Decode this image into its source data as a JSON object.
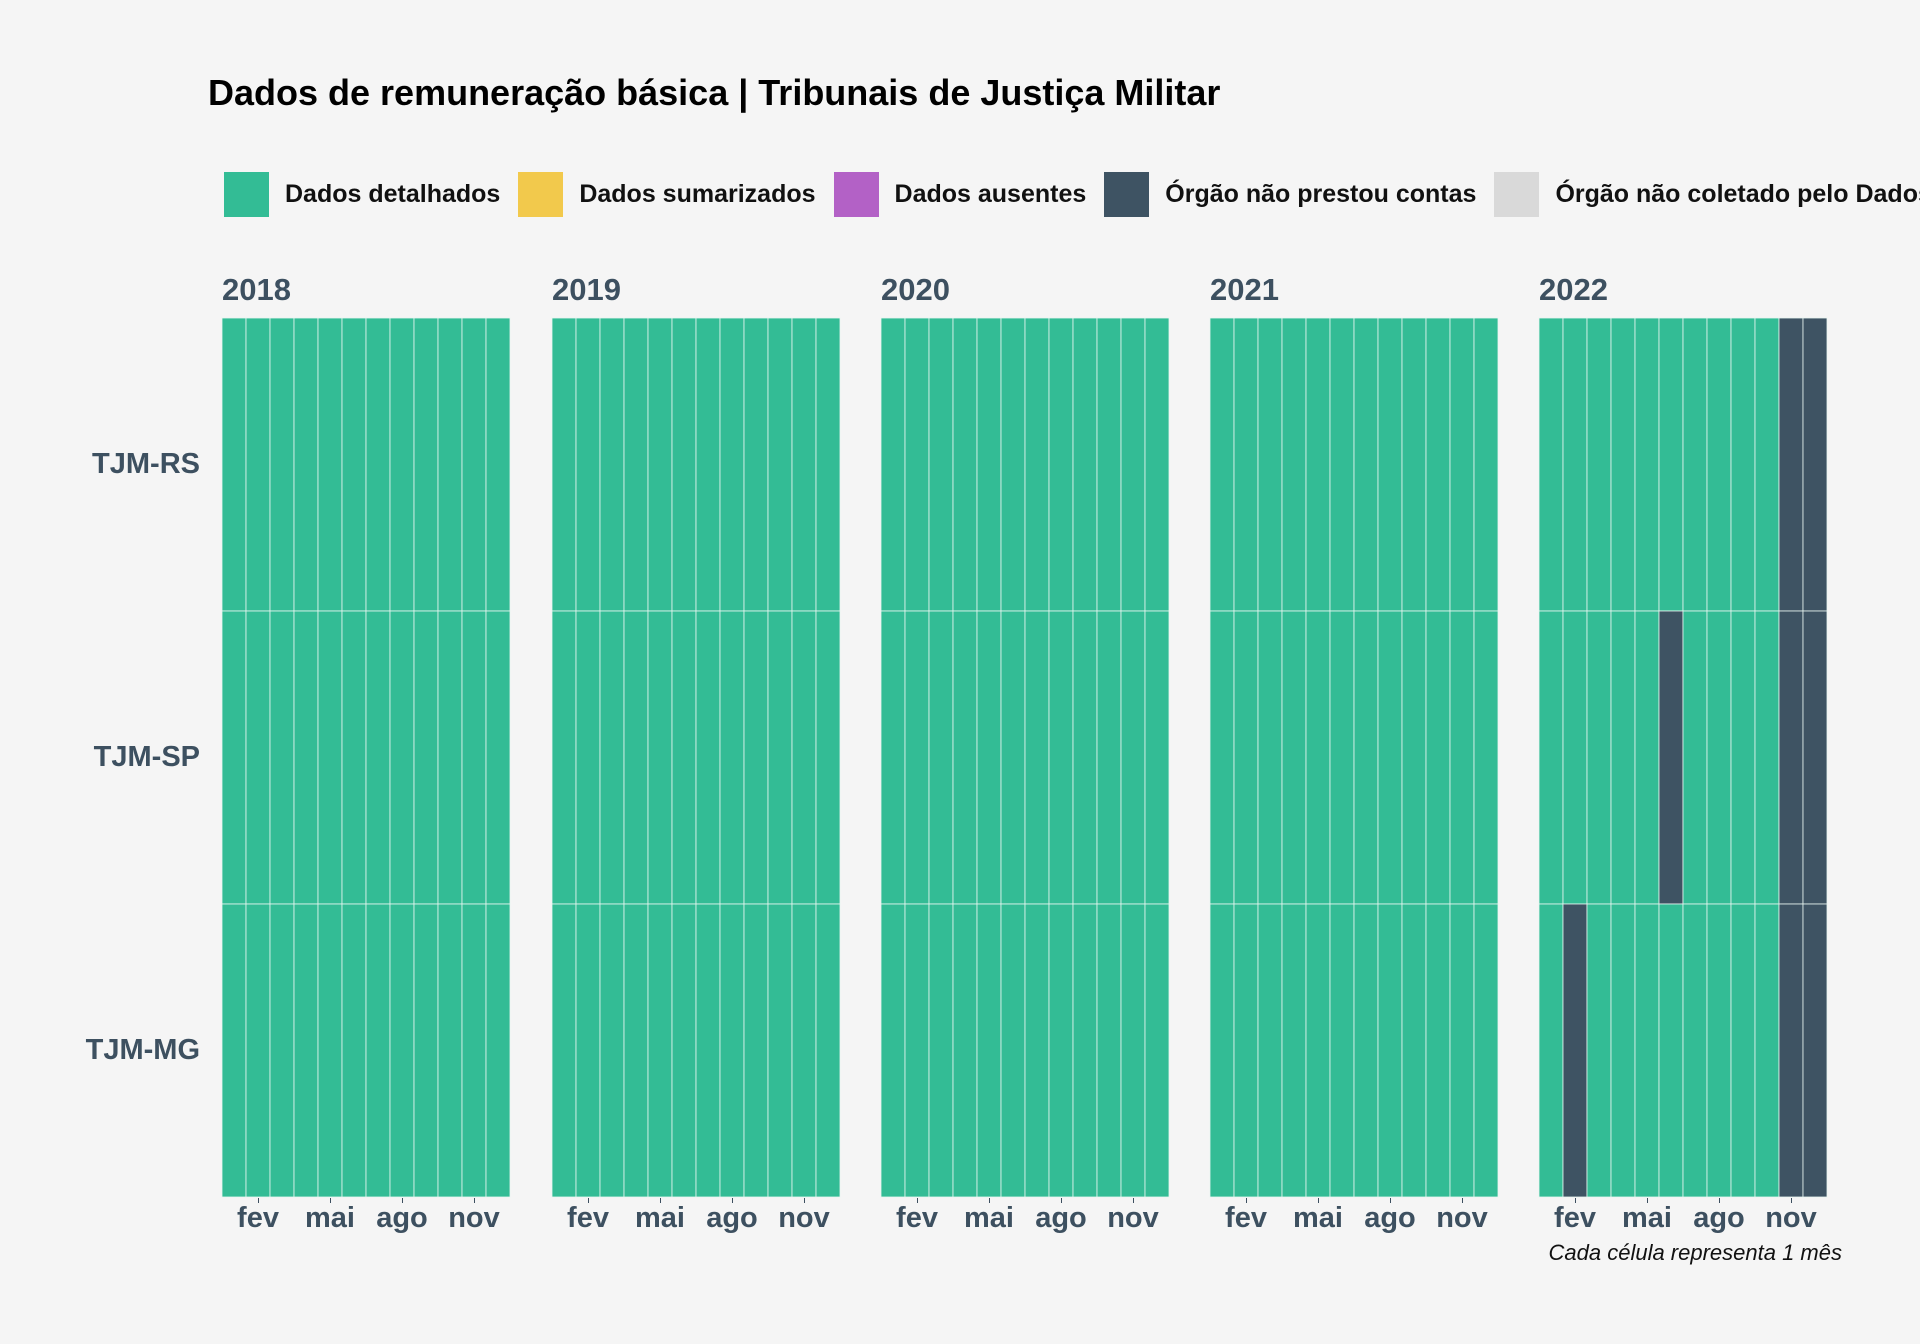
{
  "title": "Dados de remuneração básica | Tribunais de Justiça Militar",
  "legend": [
    {
      "label": "Dados detalhados",
      "color": "#33bc95"
    },
    {
      "label": "Dados sumarizados",
      "color": "#f2c94c"
    },
    {
      "label": "Dados ausentes",
      "color": "#b361c6"
    },
    {
      "label": "Órgão não prestou contas",
      "color": "#3e5363"
    },
    {
      "label": "Órgão não coletado pelo DadosJusBr",
      "color": "#d9d9d9"
    }
  ],
  "caption": "Cada célula representa 1 mês",
  "chart_data": {
    "type": "heatmap",
    "title": "Dados de remuneração básica | Tribunais de Justiça Militar",
    "rows": [
      "TJM-RS",
      "TJM-SP",
      "TJM-MG"
    ],
    "years": [
      "2018",
      "2019",
      "2020",
      "2021",
      "2022"
    ],
    "months": [
      "jan",
      "fev",
      "mar",
      "abr",
      "mai",
      "jun",
      "jul",
      "ago",
      "set",
      "out",
      "nov",
      "dez"
    ],
    "x_tick_labels": [
      "fev",
      "mai",
      "ago",
      "nov"
    ],
    "x_tick_month_index": [
      1,
      4,
      7,
      10
    ],
    "status_colors": {
      "Dados detalhados": "#33bc95",
      "Dados sumarizados": "#f2c94c",
      "Dados ausentes": "#b361c6",
      "Órgão não prestou contas": "#3e5363",
      "Órgão não coletado pelo DadosJusBr": "#d9d9d9"
    },
    "default_status": "Dados detalhados",
    "exceptions": [
      {
        "row": "TJM-RS",
        "year": "2022",
        "month": "nov",
        "status": "Órgão não prestou contas"
      },
      {
        "row": "TJM-RS",
        "year": "2022",
        "month": "dez",
        "status": "Órgão não prestou contas"
      },
      {
        "row": "TJM-SP",
        "year": "2022",
        "month": "jun",
        "status": "Órgão não prestou contas"
      },
      {
        "row": "TJM-SP",
        "year": "2022",
        "month": "nov",
        "status": "Órgão não prestou contas"
      },
      {
        "row": "TJM-SP",
        "year": "2022",
        "month": "dez",
        "status": "Órgão não prestou contas"
      },
      {
        "row": "TJM-MG",
        "year": "2022",
        "month": "fev",
        "status": "Órgão não prestou contas"
      },
      {
        "row": "TJM-MG",
        "year": "2022",
        "month": "nov",
        "status": "Órgão não prestou contas"
      },
      {
        "row": "TJM-MG",
        "year": "2022",
        "month": "dez",
        "status": "Órgão não prestou contas"
      }
    ]
  }
}
